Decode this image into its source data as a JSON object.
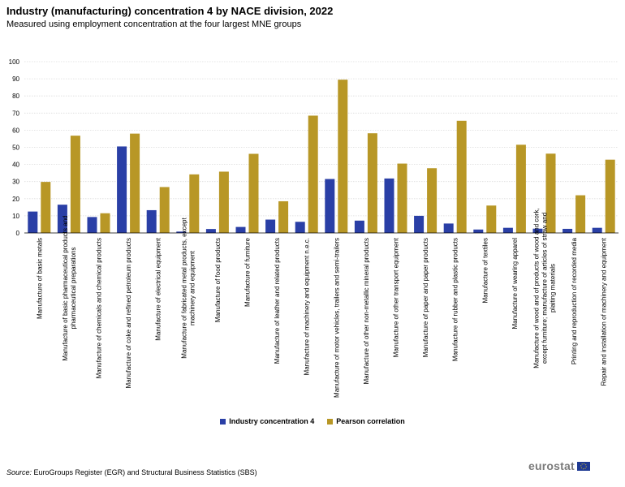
{
  "source_label": "Source:",
  "source_text": " EuroGroups Register (EGR) and Structural Business Statistics (SBS)",
  "logo_text": "eurostat",
  "colors": {
    "series1": "#2a3fa6",
    "series2": "#b89726",
    "grid": "#dcdcdc"
  },
  "chart_data": {
    "type": "bar",
    "title": "Industry (manufacturing) concentration 4 by NACE division, 2022",
    "subtitle": "Measured using employment  concentration at the four largest MNE groups",
    "xlabel": "",
    "ylabel": "",
    "ylim": [
      0,
      100
    ],
    "yticks": [
      0,
      10,
      20,
      30,
      40,
      50,
      60,
      70,
      80,
      90,
      100
    ],
    "grid": true,
    "legend_position": "bottom-center",
    "categories": [
      [
        "Manufacture of basic metals"
      ],
      [
        "Manufacture of basic pharmaceutical products and",
        "pharmaceutical preparations"
      ],
      [
        "Manufacture of chemicals and chemical products"
      ],
      [
        "Manufacture of coke and refined petroleum products"
      ],
      [
        "Manufacture of electrical equipment"
      ],
      [
        "Manufacture of fabricated metal products, except",
        "machinery and equipment"
      ],
      [
        "Manufacture of food products"
      ],
      [
        "Manufacture of furniture"
      ],
      [
        "Manufacture of leather and related products"
      ],
      [
        "Manufacture of machinery and equipment n.e.c."
      ],
      [
        "Manufacture of motor vehicles, trailers and semi-trailers"
      ],
      [
        "Manufacture of other non-metallic mineral products"
      ],
      [
        "Manufacture of other transport equipment"
      ],
      [
        "Manufacture of paper and paper products"
      ],
      [
        "Manufacture of rubber and plastic products"
      ],
      [
        "Manufacture of textiles"
      ],
      [
        "Manufacture of wearing apparel"
      ],
      [
        "Manufacture of wood and of products of wood and cork,",
        "except furniture; manufacture of articles of straw and",
        "plaiting materials"
      ],
      [
        "Printing and reproduction of recorded media"
      ],
      [
        "Repair and installation of machinery and equipment"
      ]
    ],
    "series": [
      {
        "name": "Industry concentration 4",
        "values": [
          12.5,
          16.5,
          9.3,
          50.5,
          13.3,
          0.8,
          2.3,
          3.5,
          7.8,
          6.5,
          31.5,
          7.2,
          31.8,
          10.0,
          5.5,
          2.0,
          3.0,
          2.5,
          2.4,
          3.0
        ]
      },
      {
        "name": "Pearson correlation",
        "values": [
          29.8,
          56.8,
          11.5,
          58.0,
          26.8,
          34.2,
          35.8,
          46.2,
          18.5,
          68.5,
          89.5,
          58.2,
          40.5,
          37.8,
          65.5,
          16.0,
          51.5,
          46.3,
          22.0,
          42.8
        ]
      }
    ]
  }
}
